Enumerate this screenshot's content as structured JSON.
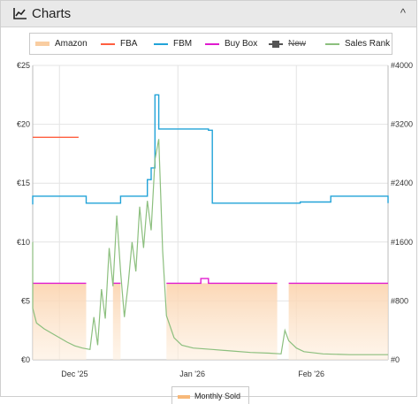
{
  "header": {
    "title": "Charts",
    "icon": "line-chart-icon",
    "collapse_icon": "chevron-up-icon",
    "collapse_glyph": "^"
  },
  "legend": [
    {
      "key": "amazon",
      "label": "Amazon",
      "color": "#f7b879",
      "struck": false,
      "swatch": "area"
    },
    {
      "key": "fba",
      "label": "FBA",
      "color": "#ff5f3f",
      "struck": false,
      "swatch": "line"
    },
    {
      "key": "fbm",
      "label": "FBM",
      "color": "#22a3d8",
      "struck": false,
      "swatch": "line"
    },
    {
      "key": "buybox",
      "label": "Buy Box",
      "color": "#e01bcf",
      "struck": false,
      "swatch": "line"
    },
    {
      "key": "new",
      "label": "New",
      "color": "#555555",
      "struck": true,
      "swatch": "marker"
    },
    {
      "key": "salesrank",
      "label": "Sales Rank",
      "color": "#8cbf7e",
      "struck": false,
      "swatch": "line"
    }
  ],
  "bottom_legend": {
    "label": "Monthly Sold",
    "color": "#f7b879"
  },
  "chart_data": {
    "type": "line",
    "x_ticks": [
      {
        "label": "Dec '25",
        "date": "2025-12-01"
      },
      {
        "label": "Jan '26",
        "date": "2026-01-01"
      },
      {
        "label": "Feb '26",
        "date": "2026-02-01"
      }
    ],
    "x_range": [
      "2025-11-24",
      "2026-02-25"
    ],
    "y_left": {
      "ticks": [
        "€0",
        "€5",
        "€10",
        "€15",
        "€20",
        "€25"
      ],
      "min": 0,
      "max": 25
    },
    "y_right": {
      "ticks": [
        "#0",
        "#800",
        "#1600",
        "#2400",
        "#3200",
        "#4000"
      ],
      "min": 0,
      "max": 4000
    },
    "grid": true,
    "series": [
      {
        "name": "Amazon",
        "axis": "left",
        "kind": "area",
        "color": "#f7b879",
        "segments": [
          [
            [
              "2025-11-24",
              6.5
            ],
            [
              "2025-12-08",
              6.5
            ]
          ],
          [
            [
              "2025-12-15",
              6.5
            ],
            [
              "2025-12-17",
              6.5
            ]
          ],
          [
            [
              "2025-12-29",
              6.5
            ],
            [
              "2026-01-27",
              6.5
            ]
          ],
          [
            [
              "2026-01-30",
              6.5
            ],
            [
              "2026-02-25",
              6.5
            ]
          ]
        ]
      },
      {
        "name": "FBA",
        "axis": "left",
        "kind": "line",
        "color": "#ff5f3f",
        "segments": [
          [
            [
              "2025-11-24",
              18.9
            ],
            [
              "2025-12-06",
              18.9
            ]
          ]
        ]
      },
      {
        "name": "FBM",
        "axis": "left",
        "kind": "step",
        "color": "#22a3d8",
        "segments": [
          [
            [
              "2025-11-24",
              13.2
            ],
            [
              "2025-11-24",
              13.9
            ],
            [
              "2025-12-08",
              13.9
            ],
            [
              "2025-12-08",
              13.3
            ],
            [
              "2025-12-17",
              13.3
            ],
            [
              "2025-12-17",
              13.9
            ],
            [
              "2025-12-24",
              13.9
            ],
            [
              "2025-12-24",
              15.3
            ],
            [
              "2025-12-25",
              15.3
            ],
            [
              "2025-12-25",
              16.3
            ],
            [
              "2025-12-26",
              16.3
            ],
            [
              "2025-12-26",
              22.5
            ],
            [
              "2025-12-27",
              22.5
            ],
            [
              "2025-12-27",
              19.6
            ],
            [
              "2026-01-09",
              19.6
            ],
            [
              "2026-01-09",
              19.5
            ],
            [
              "2026-01-10",
              19.5
            ],
            [
              "2026-01-10",
              13.3
            ],
            [
              "2026-02-02",
              13.3
            ],
            [
              "2026-02-02",
              13.4
            ],
            [
              "2026-02-10",
              13.4
            ],
            [
              "2026-02-10",
              13.9
            ],
            [
              "2026-02-25",
              13.9
            ],
            [
              "2026-02-25",
              13.3
            ]
          ]
        ]
      },
      {
        "name": "Buy Box",
        "axis": "left",
        "kind": "step",
        "color": "#e01bcf",
        "segments": [
          [
            [
              "2025-11-24",
              6.5
            ],
            [
              "2025-12-08",
              6.5
            ]
          ],
          [
            [
              "2025-12-15",
              6.5
            ],
            [
              "2025-12-17",
              6.5
            ]
          ],
          [
            [
              "2025-12-29",
              6.5
            ],
            [
              "2026-01-07",
              6.5
            ],
            [
              "2026-01-07",
              6.9
            ],
            [
              "2026-01-09",
              6.9
            ],
            [
              "2026-01-09",
              6.5
            ],
            [
              "2026-01-27",
              6.5
            ]
          ],
          [
            [
              "2026-01-30",
              6.5
            ],
            [
              "2026-02-25",
              6.5
            ]
          ]
        ]
      },
      {
        "name": "Sales Rank",
        "axis": "right",
        "kind": "line",
        "color": "#8cbf7e",
        "segments": [
          [
            [
              "2025-11-24",
              1600
            ],
            [
              "2025-11-24",
              700
            ],
            [
              "2025-11-25",
              500
            ],
            [
              "2025-11-27",
              420
            ],
            [
              "2025-11-29",
              360
            ],
            [
              "2025-12-01",
              300
            ],
            [
              "2025-12-03",
              240
            ],
            [
              "2025-12-05",
              190
            ],
            [
              "2025-12-07",
              160
            ],
            [
              "2025-12-09",
              140
            ],
            [
              "2025-12-10",
              580
            ],
            [
              "2025-12-11",
              200
            ],
            [
              "2025-12-12",
              960
            ],
            [
              "2025-12-13",
              560
            ],
            [
              "2025-12-14",
              1520
            ],
            [
              "2025-12-15",
              1000
            ],
            [
              "2025-12-16",
              1960
            ],
            [
              "2025-12-17",
              1200
            ],
            [
              "2025-12-18",
              580
            ],
            [
              "2025-12-19",
              1040
            ],
            [
              "2025-12-20",
              1600
            ],
            [
              "2025-12-21",
              1200
            ],
            [
              "2025-12-22",
              2080
            ],
            [
              "2025-12-23",
              1520
            ],
            [
              "2025-12-24",
              2160
            ],
            [
              "2025-12-25",
              1760
            ],
            [
              "2025-12-26",
              2720
            ],
            [
              "2025-12-27",
              3000
            ],
            [
              "2025-12-28",
              1480
            ],
            [
              "2025-12-29",
              600
            ],
            [
              "2025-12-31",
              300
            ],
            [
              "2026-01-02",
              200
            ],
            [
              "2026-01-05",
              160
            ],
            [
              "2026-01-10",
              140
            ],
            [
              "2026-01-15",
              120
            ],
            [
              "2026-01-20",
              100
            ],
            [
              "2026-01-25",
              90
            ],
            [
              "2026-01-28",
              80
            ],
            [
              "2026-01-29",
              400
            ],
            [
              "2026-01-30",
              260
            ],
            [
              "2026-02-01",
              160
            ],
            [
              "2026-02-03",
              110
            ],
            [
              "2026-02-08",
              80
            ],
            [
              "2026-02-15",
              70
            ],
            [
              "2026-02-20",
              70
            ],
            [
              "2026-02-25",
              70
            ]
          ]
        ]
      }
    ]
  }
}
